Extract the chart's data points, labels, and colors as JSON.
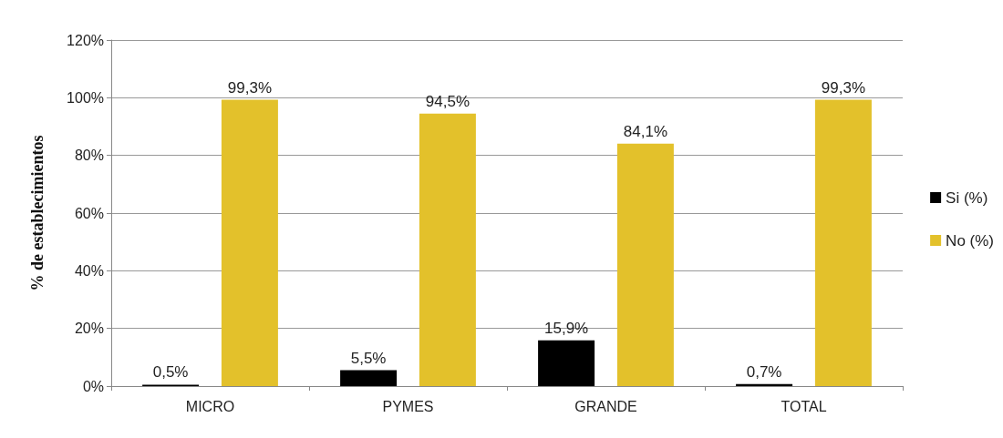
{
  "chart_data": {
    "type": "bar",
    "ylabel": "% de establecimientos",
    "categories": [
      "MICRO",
      "PYMES",
      "GRANDE",
      "TOTAL"
    ],
    "series": [
      {
        "name": "Si (%)",
        "color": "#000000",
        "values": [
          0.5,
          5.5,
          15.9,
          0.7
        ],
        "value_labels": [
          "0,5%",
          "5,5%",
          "15,9%",
          "0,7%"
        ]
      },
      {
        "name": "No (%)",
        "color": "#e3c12b",
        "values": [
          99.3,
          94.5,
          84.1,
          99.3
        ],
        "value_labels": [
          "99,3%",
          "94,5%",
          "84,1%",
          "99,3%"
        ]
      }
    ],
    "ylim": [
      0,
      120
    ],
    "yticks": [
      {
        "value": 0,
        "label": "0%"
      },
      {
        "value": 20,
        "label": "20%"
      },
      {
        "value": 40,
        "label": "40%"
      },
      {
        "value": 60,
        "label": "60%"
      },
      {
        "value": 80,
        "label": "80%"
      },
      {
        "value": 100,
        "label": "100%"
      },
      {
        "value": 120,
        "label": "120%"
      }
    ],
    "grid": "y",
    "legend": "right"
  }
}
